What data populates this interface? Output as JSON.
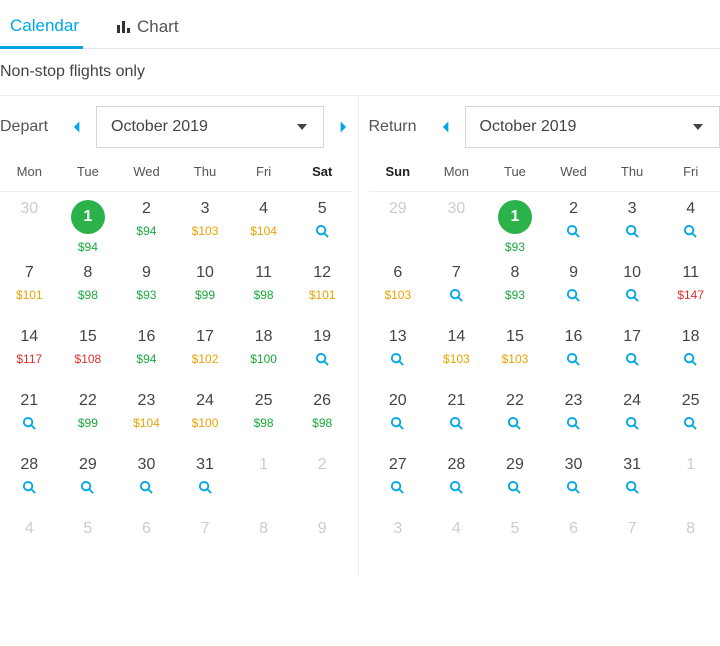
{
  "tabs": {
    "calendar": "Calendar",
    "chart": "Chart",
    "active": "calendar"
  },
  "filter": {
    "label": "Non-stop flights only"
  },
  "colors": {
    "accent": "#00a6e6",
    "selected": "#2bb24a",
    "green": "#1aa83a",
    "orange": "#e8a400",
    "red": "#e03030"
  },
  "depart": {
    "title": "Depart",
    "month": "October 2019",
    "dow": [
      "Mon",
      "Tue",
      "Wed",
      "Thu",
      "Fri",
      "Sat"
    ],
    "dow_bold": [
      false,
      false,
      false,
      false,
      false,
      true
    ],
    "weeks": [
      [
        {
          "d": "30",
          "out": true
        },
        {
          "d": "1",
          "sel": true,
          "price": "$94",
          "pc": "green"
        },
        {
          "d": "2",
          "price": "$94",
          "pc": "green"
        },
        {
          "d": "3",
          "price": "$103",
          "pc": "orange"
        },
        {
          "d": "4",
          "price": "$104",
          "pc": "orange"
        },
        {
          "d": "5",
          "mag": true
        }
      ],
      [
        {
          "d": "7",
          "price": "$101",
          "pc": "orange"
        },
        {
          "d": "8",
          "price": "$98",
          "pc": "green"
        },
        {
          "d": "9",
          "price": "$93",
          "pc": "green"
        },
        {
          "d": "10",
          "price": "$99",
          "pc": "green"
        },
        {
          "d": "11",
          "price": "$98",
          "pc": "green"
        },
        {
          "d": "12",
          "price": "$101",
          "pc": "orange"
        }
      ],
      [
        {
          "d": "14",
          "price": "$117",
          "pc": "red"
        },
        {
          "d": "15",
          "price": "$108",
          "pc": "red"
        },
        {
          "d": "16",
          "price": "$94",
          "pc": "green"
        },
        {
          "d": "17",
          "price": "$102",
          "pc": "orange"
        },
        {
          "d": "18",
          "price": "$100",
          "pc": "green"
        },
        {
          "d": "19",
          "mag": true
        }
      ],
      [
        {
          "d": "21",
          "mag": true
        },
        {
          "d": "22",
          "price": "$99",
          "pc": "green"
        },
        {
          "d": "23",
          "price": "$104",
          "pc": "orange"
        },
        {
          "d": "24",
          "price": "$100",
          "pc": "orange"
        },
        {
          "d": "25",
          "price": "$98",
          "pc": "green"
        },
        {
          "d": "26",
          "price": "$98",
          "pc": "green"
        }
      ],
      [
        {
          "d": "28",
          "mag": true
        },
        {
          "d": "29",
          "mag": true
        },
        {
          "d": "30",
          "mag": true
        },
        {
          "d": "31",
          "mag": true
        },
        {
          "d": "1",
          "out": true
        },
        {
          "d": "2",
          "out": true
        }
      ],
      [
        {
          "d": "4",
          "out": true
        },
        {
          "d": "5",
          "out": true
        },
        {
          "d": "6",
          "out": true
        },
        {
          "d": "7",
          "out": true
        },
        {
          "d": "8",
          "out": true
        },
        {
          "d": "9",
          "out": true
        }
      ]
    ]
  },
  "return": {
    "title": "Return",
    "month": "October 2019",
    "dow": [
      "Sun",
      "Mon",
      "Tue",
      "Wed",
      "Thu",
      "Fri"
    ],
    "dow_bold": [
      true,
      false,
      false,
      false,
      false,
      false
    ],
    "weeks": [
      [
        {
          "d": "29",
          "out": true
        },
        {
          "d": "30",
          "out": true
        },
        {
          "d": "1",
          "sel": true,
          "price": "$93",
          "pc": "green"
        },
        {
          "d": "2",
          "mag": true
        },
        {
          "d": "3",
          "mag": true
        },
        {
          "d": "4",
          "mag": true
        }
      ],
      [
        {
          "d": "6",
          "price": "$103",
          "pc": "orange"
        },
        {
          "d": "7",
          "mag": true
        },
        {
          "d": "8",
          "price": "$93",
          "pc": "green"
        },
        {
          "d": "9",
          "mag": true
        },
        {
          "d": "10",
          "mag": true
        },
        {
          "d": "11",
          "price": "$147",
          "pc": "red"
        }
      ],
      [
        {
          "d": "13",
          "mag": true
        },
        {
          "d": "14",
          "price": "$103",
          "pc": "orange"
        },
        {
          "d": "15",
          "price": "$103",
          "pc": "orange"
        },
        {
          "d": "16",
          "mag": true
        },
        {
          "d": "17",
          "mag": true
        },
        {
          "d": "18",
          "mag": true
        }
      ],
      [
        {
          "d": "20",
          "mag": true
        },
        {
          "d": "21",
          "mag": true
        },
        {
          "d": "22",
          "mag": true
        },
        {
          "d": "23",
          "mag": true
        },
        {
          "d": "24",
          "mag": true
        },
        {
          "d": "25",
          "mag": true
        }
      ],
      [
        {
          "d": "27",
          "mag": true
        },
        {
          "d": "28",
          "mag": true
        },
        {
          "d": "29",
          "mag": true
        },
        {
          "d": "30",
          "mag": true
        },
        {
          "d": "31",
          "mag": true
        },
        {
          "d": "1",
          "out": true
        }
      ],
      [
        {
          "d": "3",
          "out": true
        },
        {
          "d": "4",
          "out": true
        },
        {
          "d": "5",
          "out": true
        },
        {
          "d": "6",
          "out": true
        },
        {
          "d": "7",
          "out": true
        },
        {
          "d": "8",
          "out": true
        }
      ]
    ]
  }
}
